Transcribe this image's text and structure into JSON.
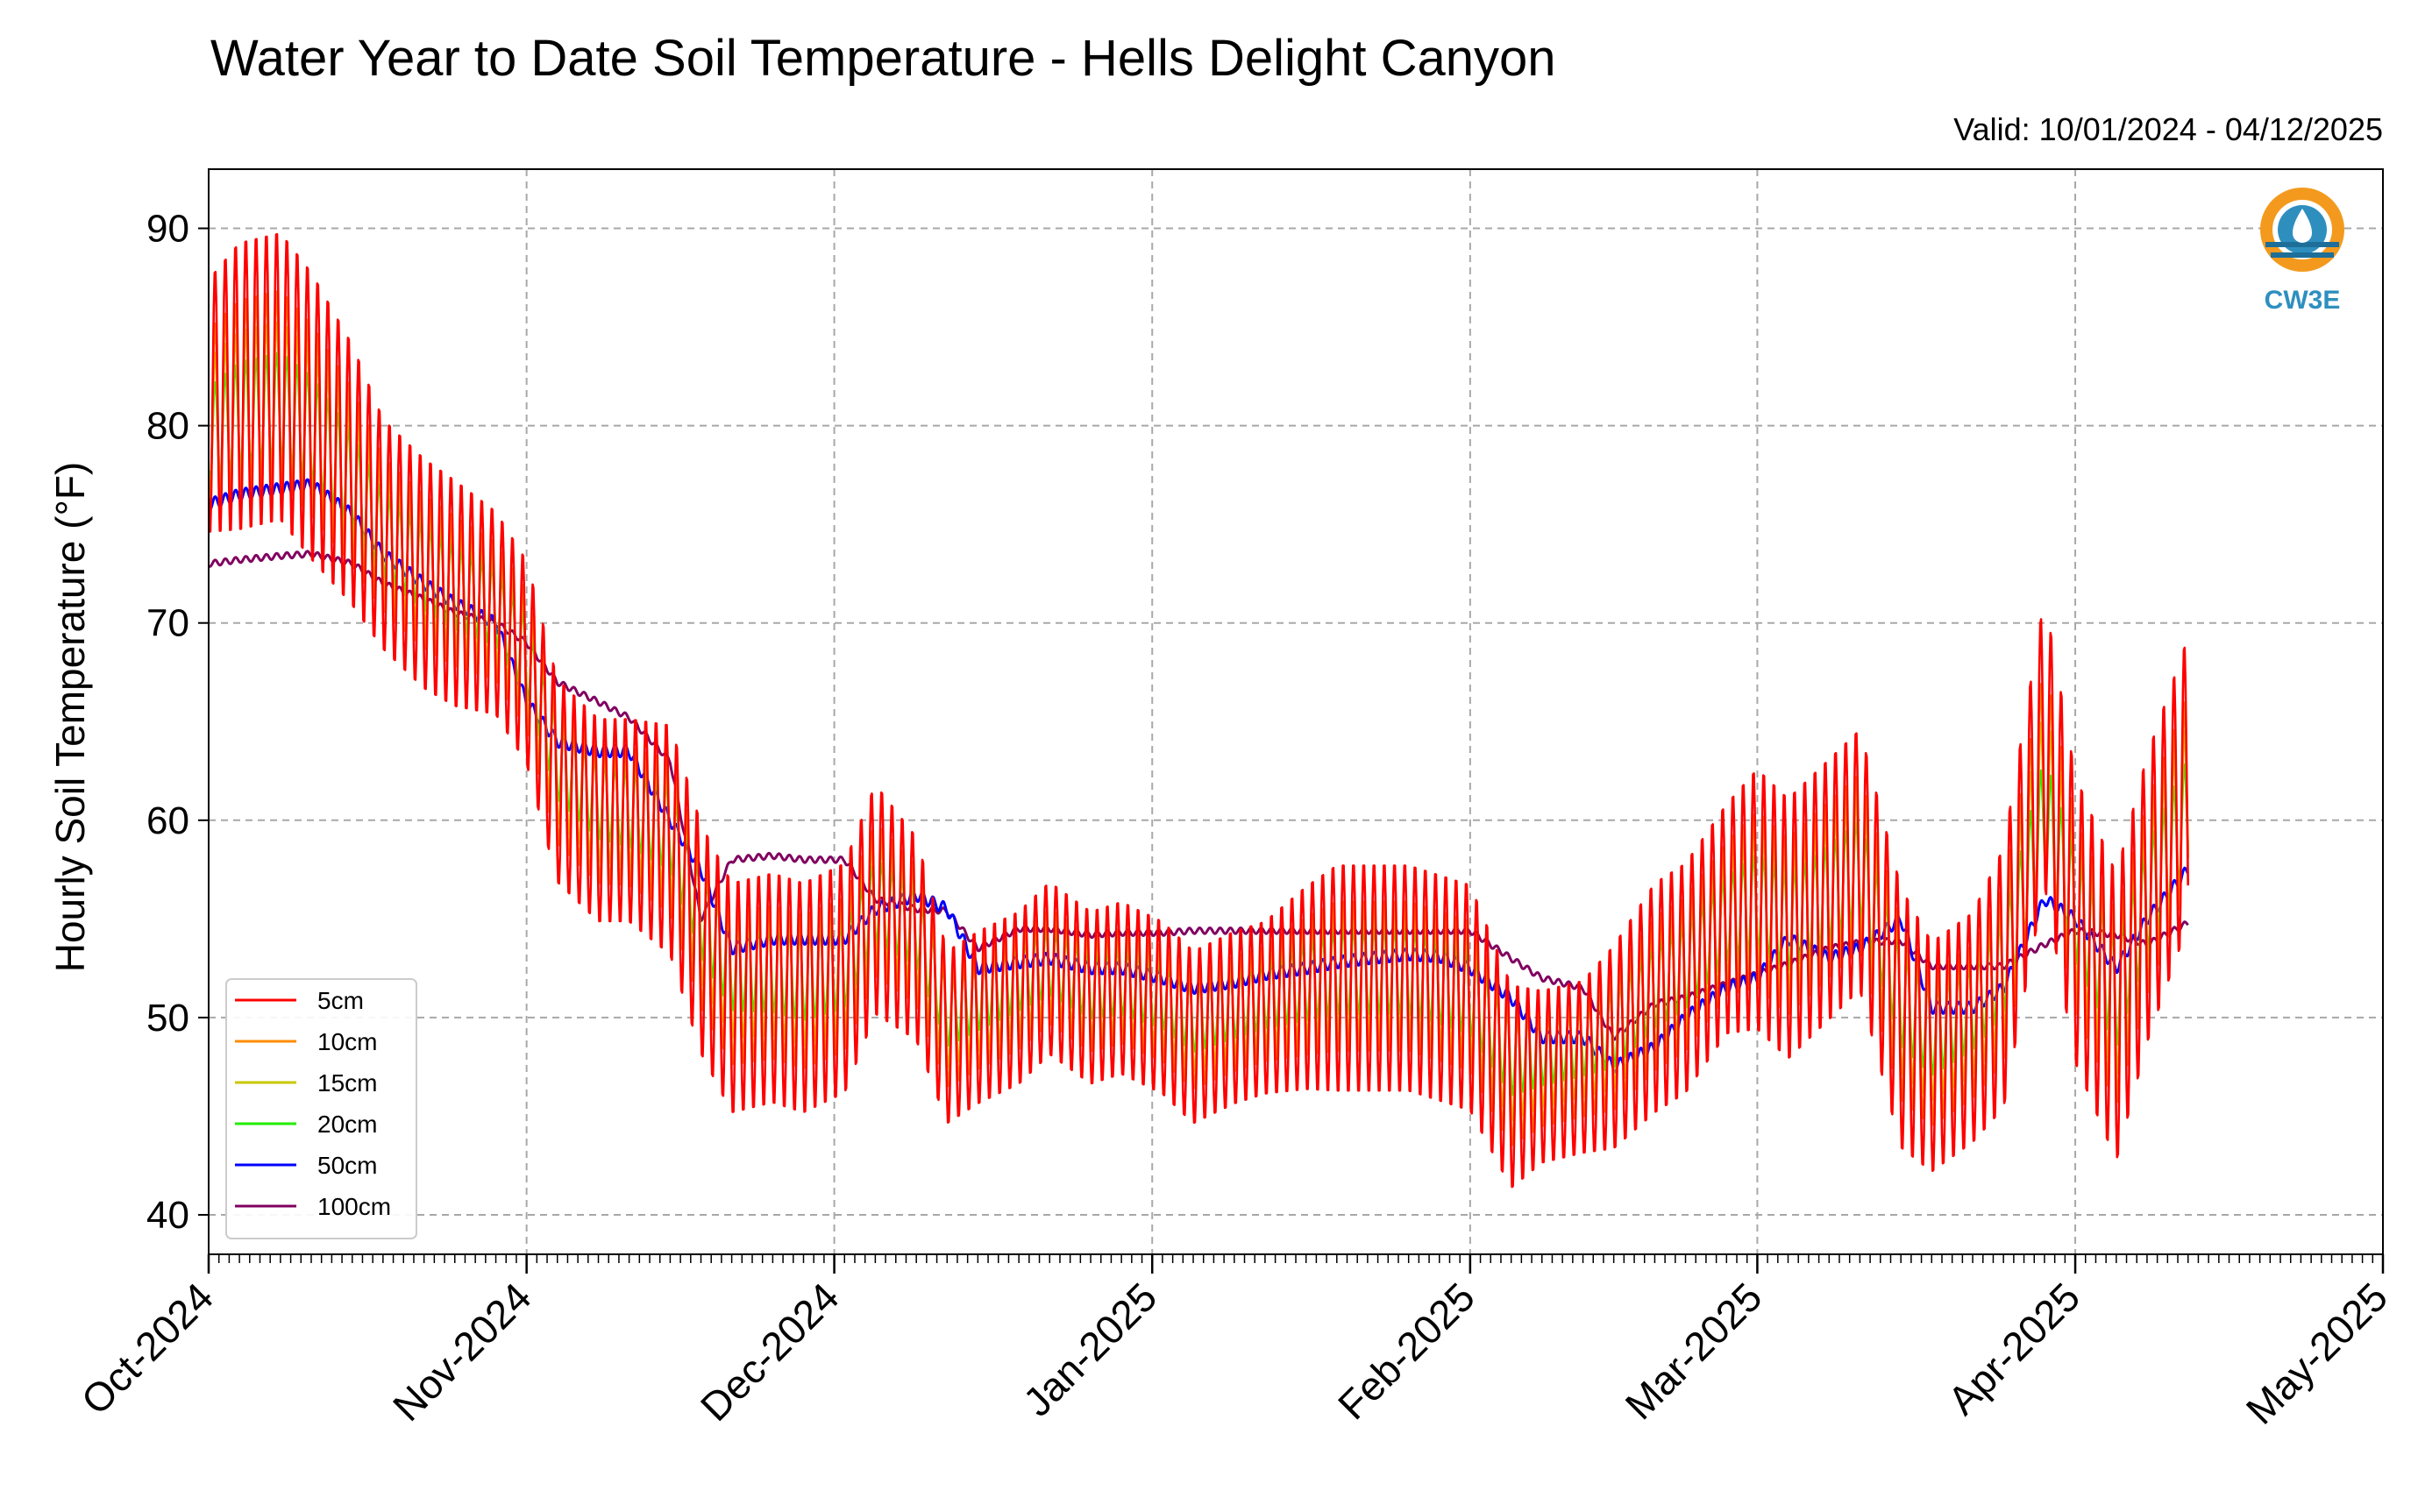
{
  "chart_data": {
    "type": "line",
    "title": "Water Year to Date Soil Temperature - Hells Delight Canyon",
    "subtitle": "Valid: 10/01/2024 - 04/12/2025",
    "xlabel": "",
    "ylabel": "Hourly Soil Temperature (°F)",
    "ylim": [
      38,
      93
    ],
    "y_ticks": [
      40,
      50,
      60,
      70,
      80,
      90
    ],
    "x_ticks": [
      "Oct-2024",
      "Nov-2024",
      "Dec-2024",
      "Jan-2025",
      "Feb-2025",
      "Mar-2025",
      "Apr-2025",
      "May-2025"
    ],
    "xlim": [
      "2024-10-01",
      "2025-05-01"
    ],
    "grid": true,
    "legend_position": "lower-left",
    "logo_text": "CW3E",
    "x": [
      "2024-10-01",
      "2024-10-04",
      "2024-10-08",
      "2024-10-11",
      "2024-10-15",
      "2024-10-18",
      "2024-10-22",
      "2024-10-25",
      "2024-10-29",
      "2024-11-01",
      "2024-11-04",
      "2024-11-08",
      "2024-11-11",
      "2024-11-15",
      "2024-11-18",
      "2024-11-21",
      "2024-11-25",
      "2024-11-28",
      "2024-12-02",
      "2024-12-05",
      "2024-12-09",
      "2024-12-12",
      "2024-12-15",
      "2024-12-19",
      "2024-12-22",
      "2024-12-26",
      "2024-12-29",
      "2025-01-02",
      "2025-01-05",
      "2025-01-09",
      "2025-01-12",
      "2025-01-16",
      "2025-01-19",
      "2025-01-22",
      "2025-01-26",
      "2025-01-29",
      "2025-02-01",
      "2025-02-05",
      "2025-02-08",
      "2025-02-12",
      "2025-02-15",
      "2025-02-19",
      "2025-02-22",
      "2025-02-26",
      "2025-03-01",
      "2025-03-04",
      "2025-03-08",
      "2025-03-11",
      "2025-03-15",
      "2025-03-18",
      "2025-03-22",
      "2025-03-25",
      "2025-03-29",
      "2025-04-01",
      "2025-04-05",
      "2025-04-08",
      "2025-04-12"
    ],
    "series": [
      {
        "name": "5cm",
        "color": "#ff0000",
        "amplitude": [
          6.6,
          7.5,
          7.5,
          7.5,
          6.8,
          6.0,
          6.0,
          5.9,
          5.3,
          5.3,
          5.3,
          5.3,
          5.3,
          6.0,
          6.0,
          6.0,
          6.0,
          6.0,
          6.0,
          6.0,
          5.3,
          4.5,
          4.5,
          4.5,
          4.5,
          4.5,
          4.5,
          4.5,
          4.5,
          4.5,
          4.5,
          5.3,
          5.9,
          5.9,
          5.9,
          5.9,
          5.9,
          5.3,
          4.5,
          4.5,
          5.3,
          6.0,
          6.0,
          6.0,
          6.8,
          6.8,
          6.8,
          6.8,
          6.8,
          6.0,
          6.0,
          6.8,
          7.5,
          7.5,
          7.5,
          7.5,
          7.5
        ],
        "values": [
          81,
          82,
          82.5,
          80.5,
          77.5,
          74.5,
          72.5,
          71.5,
          70.5,
          68,
          62,
          60,
          60,
          59,
          54,
          51,
          51.5,
          51,
          52,
          56,
          54,
          49,
          50,
          51,
          52.5,
          51,
          51.5,
          50.5,
          49,
          50,
          50.5,
          51.5,
          52,
          52,
          52,
          51.5,
          51,
          46.5,
          47,
          47.5,
          48.5,
          51,
          52,
          55,
          56,
          54.5,
          56.5,
          58,
          50,
          48,
          49.5,
          52,
          64,
          55,
          50,
          56,
          62
        ]
      },
      {
        "name": "10cm",
        "color": "#ff8c00",
        "amplitude": [
          4.5,
          5.0,
          5.0,
          5.0,
          4.6,
          4.0,
          4.0,
          3.9,
          3.6,
          3.6,
          3.6,
          3.6,
          3.6,
          4.0,
          4.0,
          4.0,
          4.0,
          4.0,
          4.0,
          4.0,
          3.6,
          3.0,
          3.0,
          3.0,
          3.0,
          3.0,
          3.0,
          3.0,
          3.0,
          3.0,
          3.0,
          3.6,
          3.9,
          3.9,
          3.9,
          3.9,
          3.9,
          3.6,
          3.0,
          3.0,
          3.6,
          4.0,
          4.0,
          4.0,
          4.6,
          4.6,
          4.6,
          4.6,
          4.6,
          4.0,
          4.0,
          4.6,
          5.0,
          5.0,
          5.0,
          5.0,
          5.0
        ],
        "values": [
          80.5,
          81.5,
          82,
          80.3,
          77.4,
          74.5,
          72.6,
          71.6,
          70.6,
          68.1,
          62.3,
          60.3,
          60.2,
          59.2,
          54.4,
          51.5,
          51.8,
          51.3,
          52.2,
          56,
          54.2,
          49.4,
          50.3,
          51.3,
          52.6,
          51.2,
          51.6,
          50.7,
          49.3,
          50.2,
          50.7,
          51.6,
          52.1,
          52.1,
          52.1,
          51.6,
          51.1,
          47,
          47.4,
          47.9,
          48.8,
          51.2,
          52.2,
          55,
          56,
          54.6,
          56.5,
          57.9,
          50.3,
          48.4,
          49.8,
          52.2,
          63,
          55.2,
          50.4,
          56,
          61.6
        ]
      },
      {
        "name": "15cm",
        "color": "#c8c800",
        "amplitude": [
          3.5,
          3.9,
          3.9,
          3.9,
          3.5,
          3.1,
          3.1,
          3.1,
          2.8,
          2.8,
          2.8,
          2.8,
          2.8,
          3.1,
          3.1,
          3.1,
          3.1,
          3.1,
          3.1,
          3.1,
          2.8,
          2.4,
          2.4,
          2.4,
          2.4,
          2.4,
          2.4,
          2.4,
          2.4,
          2.4,
          2.4,
          2.8,
          3.1,
          3.1,
          3.1,
          3.1,
          3.1,
          2.8,
          2.4,
          2.4,
          2.8,
          3.1,
          3.1,
          3.1,
          3.5,
          3.5,
          3.5,
          3.5,
          3.5,
          3.1,
          3.1,
          3.5,
          3.9,
          3.9,
          3.9,
          3.9,
          3.9
        ],
        "values": [
          80,
          81,
          81.5,
          80.1,
          77.3,
          74.5,
          72.7,
          71.7,
          70.7,
          68.2,
          62.6,
          60.6,
          60.4,
          59.4,
          54.8,
          52,
          52.1,
          51.6,
          52.4,
          56,
          54.4,
          49.8,
          50.6,
          51.6,
          52.7,
          51.4,
          51.7,
          50.9,
          49.6,
          50.4,
          50.9,
          51.7,
          52.2,
          52.2,
          52.2,
          51.7,
          51.2,
          47.5,
          47.8,
          48.3,
          49.1,
          51.4,
          52.4,
          55,
          56,
          54.7,
          56.4,
          57.8,
          50.6,
          48.8,
          50.1,
          52.4,
          62,
          55.4,
          50.8,
          56,
          61.2
        ]
      },
      {
        "name": "20cm",
        "color": "#22ee00",
        "amplitude": [
          2.5,
          2.8,
          2.8,
          2.8,
          2.5,
          2.2,
          2.2,
          2.2,
          2.0,
          2.0,
          2.0,
          2.0,
          2.0,
          2.2,
          2.2,
          2.2,
          2.2,
          2.2,
          2.2,
          2.2,
          2.0,
          1.7,
          1.7,
          1.7,
          1.7,
          1.7,
          1.7,
          1.7,
          1.7,
          1.7,
          1.7,
          2.0,
          2.2,
          2.2,
          2.2,
          2.2,
          2.2,
          2.0,
          1.7,
          1.7,
          2.0,
          2.2,
          2.2,
          2.2,
          2.5,
          2.5,
          2.5,
          2.5,
          2.5,
          2.2,
          2.2,
          2.5,
          2.8,
          2.8,
          2.8,
          2.8,
          2.8
        ],
        "values": [
          79.5,
          80.5,
          81,
          79.8,
          77.2,
          74.5,
          72.8,
          71.8,
          70.8,
          68.3,
          63,
          61,
          60.6,
          59.6,
          55.2,
          52.5,
          52.4,
          52,
          52.6,
          55.9,
          54.6,
          50.2,
          51,
          52,
          52.8,
          51.6,
          51.8,
          51.1,
          49.9,
          50.6,
          51.1,
          51.8,
          52.3,
          52.3,
          52.3,
          51.8,
          51.3,
          48,
          48.2,
          48.7,
          49.4,
          51.6,
          52.6,
          55,
          55.9,
          54.8,
          56.3,
          57.6,
          51,
          49.2,
          50.5,
          52.6,
          60.5,
          55.6,
          51.2,
          56,
          60.5
        ]
      },
      {
        "name": "50cm",
        "color": "#0000ff",
        "amplitude": [
          0.3,
          0.3,
          0.3,
          0.3,
          0.3,
          0.3,
          0.3,
          0.3,
          0.3,
          0.3,
          0.3,
          0.3,
          0.3,
          0.3,
          0.3,
          0.3,
          0.3,
          0.3,
          0.3,
          0.3,
          0.3,
          0.3,
          0.3,
          0.3,
          0.3,
          0.3,
          0.3,
          0.3,
          0.3,
          0.3,
          0.3,
          0.3,
          0.3,
          0.3,
          0.3,
          0.3,
          0.3,
          0.3,
          0.3,
          0.3,
          0.3,
          0.3,
          0.3,
          0.3,
          0.3,
          0.3,
          0.3,
          0.3,
          0.3,
          0.3,
          0.3,
          0.3,
          0.3,
          0.3,
          0.3,
          0.3,
          0.3
        ],
        "values": [
          76,
          76.5,
          76.8,
          77,
          75.5,
          73.5,
          72,
          71,
          70,
          66,
          64,
          63.5,
          63.5,
          60,
          57.5,
          53.5,
          54,
          54,
          54,
          55.5,
          56.2,
          55.5,
          52.5,
          52.8,
          53,
          52.5,
          52.5,
          52,
          51.5,
          51.8,
          52.2,
          52.5,
          52.8,
          53,
          53.2,
          53.1,
          52.5,
          51,
          49,
          49,
          47.5,
          48.5,
          50,
          51.5,
          52,
          54,
          53,
          53.5,
          55,
          50.5,
          50.5,
          51.5,
          56,
          55,
          52.5,
          55,
          57.5
        ]
      },
      {
        "name": "100cm",
        "color": "#800060",
        "amplitude": [
          0.15,
          0.15,
          0.15,
          0.15,
          0.15,
          0.15,
          0.15,
          0.15,
          0.15,
          0.15,
          0.15,
          0.15,
          0.15,
          0.15,
          0.15,
          0.15,
          0.15,
          0.15,
          0.15,
          0.15,
          0.15,
          0.15,
          0.15,
          0.15,
          0.15,
          0.15,
          0.15,
          0.15,
          0.15,
          0.15,
          0.15,
          0.15,
          0.15,
          0.15,
          0.15,
          0.15,
          0.15,
          0.15,
          0.15,
          0.15,
          0.15,
          0.15,
          0.15,
          0.15,
          0.15,
          0.15,
          0.15,
          0.15,
          0.15,
          0.15,
          0.15,
          0.15,
          0.15,
          0.15,
          0.15,
          0.15,
          0.15
        ],
        "values": [
          73,
          73.2,
          73.4,
          73.5,
          73,
          72,
          71.2,
          70.5,
          70,
          69,
          67,
          66,
          65.2,
          63,
          55,
          58,
          58.2,
          58,
          58,
          56,
          55.5,
          55.4,
          53.5,
          54.5,
          54.5,
          54.2,
          54.3,
          54.3,
          54.4,
          54.4,
          54.4,
          54.4,
          54.4,
          54.4,
          54.4,
          54.4,
          54.4,
          53,
          52,
          51.5,
          49,
          50.7,
          51,
          51.7,
          52.2,
          52.7,
          53.5,
          53.8,
          53.9,
          52.6,
          52.6,
          52.6,
          53.7,
          54.4,
          54.2,
          53.7,
          54.8
        ]
      }
    ]
  }
}
